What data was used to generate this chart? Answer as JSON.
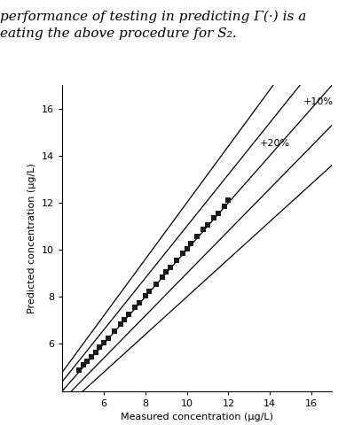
{
  "xlabel": "Measured concentration (μg/L)",
  "ylabel": "Predicted concentration (μg/L)",
  "xlim": [
    4,
    17
  ],
  "ylim": [
    4,
    17
  ],
  "xticks": [
    6,
    8,
    10,
    12,
    14,
    16
  ],
  "yticks": [
    6,
    8,
    10,
    12,
    14,
    16
  ],
  "data_x": [
    4.8,
    5.0,
    5.2,
    5.4,
    5.6,
    5.8,
    6.0,
    6.2,
    6.5,
    6.8,
    7.0,
    7.2,
    7.5,
    7.7,
    8.0,
    8.2,
    8.5,
    8.8,
    9.0,
    9.2,
    9.5,
    9.8,
    10.0,
    10.2,
    10.5,
    10.8,
    11.0,
    11.3,
    11.5,
    11.8,
    12.0
  ],
  "data_y": [
    4.9,
    5.1,
    5.25,
    5.45,
    5.65,
    5.85,
    6.05,
    6.25,
    6.55,
    6.85,
    7.05,
    7.25,
    7.55,
    7.75,
    8.05,
    8.25,
    8.55,
    8.85,
    9.05,
    9.25,
    9.55,
    9.85,
    10.05,
    10.25,
    10.55,
    10.85,
    11.05,
    11.35,
    11.55,
    11.85,
    12.1
  ],
  "line_color": "#000000",
  "marker_color": "#1a1a1a",
  "background_color": "#ffffff",
  "label_10pct": "+10%",
  "label_20pct": "+20%",
  "text_above_line1": "performance of testing in predicting Γ(·) is a",
  "text_above_line2": "eating the above procedure for S₂.",
  "figsize": [
    3.9,
    4.8
  ],
  "dpi": 100
}
